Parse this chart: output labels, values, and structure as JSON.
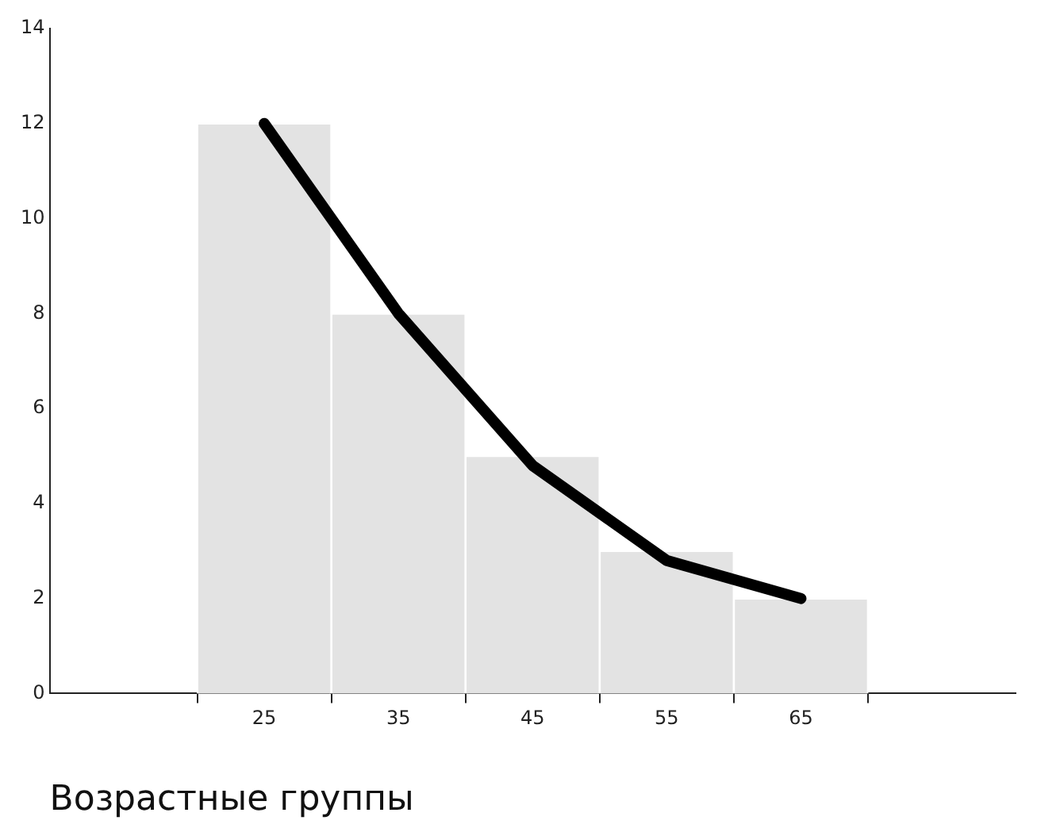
{
  "chart_data": {
    "type": "histogram",
    "xlabel": "Возрастные группы",
    "bins": [
      20,
      30,
      40,
      50,
      60,
      70
    ],
    "values": [
      12,
      8,
      5,
      3,
      2
    ],
    "color": "#e3e3e3",
    "series": [
      {
        "type": "line",
        "x": [
          25,
          35,
          45,
          55,
          65
        ],
        "values": [
          12,
          8,
          4.8,
          2.8,
          2
        ],
        "color": "#000000"
      }
    ],
    "xlim": [
      9,
      81
    ],
    "xticks": [
      25,
      35,
      45,
      55,
      65
    ],
    "ylim": [
      0,
      14
    ],
    "yticks": [
      0,
      2,
      4,
      6,
      8,
      10,
      12,
      14
    ],
    "grid": false,
    "legend": false,
    "marker": "none",
    "line_style": "solid"
  }
}
